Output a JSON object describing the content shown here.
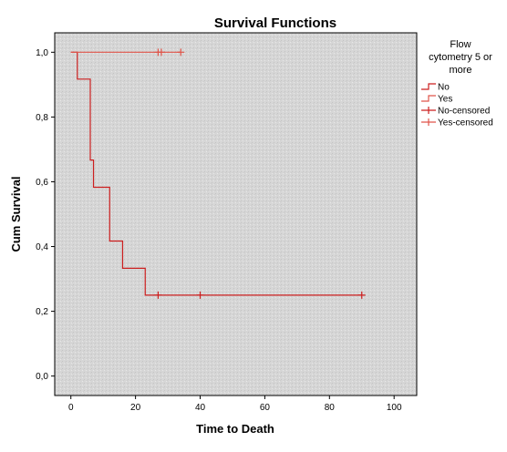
{
  "chart_data": {
    "type": "line",
    "subtype": "kaplan-meier-step",
    "title": "Survival Functions",
    "xlabel": "Time to Death",
    "ylabel": "Cum Survival",
    "xlim": [
      -5,
      107
    ],
    "ylim": [
      -0.06,
      1.06
    ],
    "x_ticks": [
      0,
      20,
      40,
      60,
      80,
      100
    ],
    "y_ticks": [
      0.0,
      0.2,
      0.4,
      0.6,
      0.8,
      1.0
    ],
    "y_tick_labels": [
      "0,0",
      "0,2",
      "0,4",
      "0,6",
      "0,8",
      "1,0"
    ],
    "grid": false,
    "legend_position": "right",
    "legend_title": "Flow cytometry 5 or more",
    "legend_entries": [
      "No",
      "Yes",
      "No-censored",
      "Yes-censored"
    ],
    "series": [
      {
        "name": "No",
        "color": "#cc1f1f",
        "steps": [
          [
            0,
            1.0
          ],
          [
            2,
            0.917
          ],
          [
            6,
            0.667
          ],
          [
            7,
            0.583
          ],
          [
            12,
            0.417
          ],
          [
            16,
            0.333
          ],
          [
            23,
            0.25
          ],
          [
            90,
            0.25
          ]
        ],
        "censored": [
          [
            27,
            0.25
          ],
          [
            40,
            0.25
          ],
          [
            90,
            0.25
          ]
        ]
      },
      {
        "name": "Yes",
        "color": "#e0554a",
        "steps": [
          [
            0,
            1.0
          ],
          [
            34,
            1.0
          ]
        ],
        "censored": [
          [
            27,
            1.0
          ],
          [
            28,
            1.0
          ],
          [
            34,
            1.0
          ]
        ]
      }
    ],
    "plot_background": "#d9d9d9"
  }
}
